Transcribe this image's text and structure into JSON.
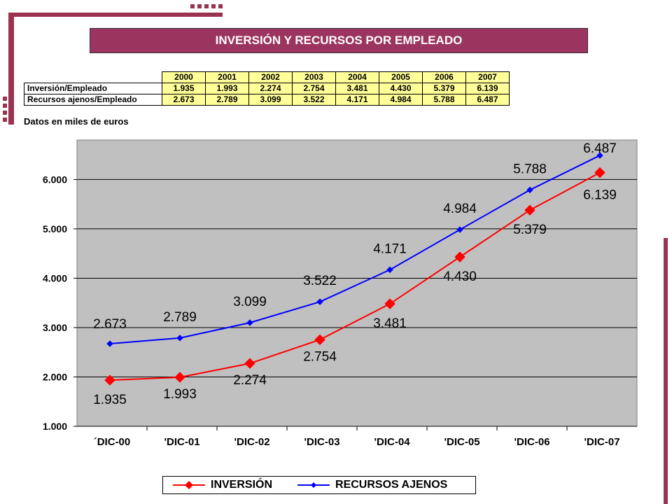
{
  "title": "INVERSIÓN Y RECURSOS POR EMPLEADO",
  "note": "Datos en miles de euros",
  "table": {
    "years": [
      "2000",
      "2001",
      "2002",
      "2003",
      "2004",
      "2005",
      "2006",
      "2007"
    ],
    "rows": [
      {
        "label": "Inversión/Empleado",
        "values": [
          "1.935",
          "1.993",
          "2.274",
          "2.754",
          "3.481",
          "4.430",
          "5.379",
          "6.139"
        ]
      },
      {
        "label": "Recursos ajenos/Empleado",
        "values": [
          "2.673",
          "2.789",
          "3.099",
          "3.522",
          "4.171",
          "4.984",
          "5.788",
          "6.487"
        ]
      }
    ]
  },
  "colors": {
    "brand": "#9b3560",
    "plot_bg": "#c0c0c0",
    "inversion": "#ff0000",
    "recursos": "#0000ff",
    "table_fill": "#ffff99"
  },
  "legend": {
    "inversion": "INVERSIÓN",
    "recursos": "RECURSOS AJENOS"
  },
  "chart_data": {
    "type": "line",
    "categories": [
      "´DIC-00",
      "'DIC-01",
      "'DIC-02",
      "'DIC-03",
      "'DIC-04",
      "'DIC-05",
      "'DIC-06",
      "'DIC-07"
    ],
    "series": [
      {
        "name": "INVERSIÓN",
        "values": [
          1935,
          1993,
          2274,
          2754,
          3481,
          4430,
          5379,
          6139
        ],
        "labels": [
          "1.935",
          "1.993",
          "2.274",
          "2.754",
          "3.481",
          "4.430",
          "5.379",
          "6.139"
        ],
        "color": "#ff0000",
        "marker": "diamond"
      },
      {
        "name": "RECURSOS AJENOS",
        "values": [
          2673,
          2789,
          3099,
          3522,
          4171,
          4984,
          5788,
          6487
        ],
        "labels": [
          "2.673",
          "2.789",
          "3.099",
          "3.522",
          "4.171",
          "4.984",
          "5.788",
          "6.487"
        ],
        "color": "#0000ff",
        "marker": "diamond"
      }
    ],
    "yticks": [
      "1.000",
      "2.000",
      "3.000",
      "4.000",
      "5.000",
      "6.000"
    ],
    "ylim": [
      1000,
      6800
    ],
    "grid": true,
    "legend_position": "bottom"
  }
}
